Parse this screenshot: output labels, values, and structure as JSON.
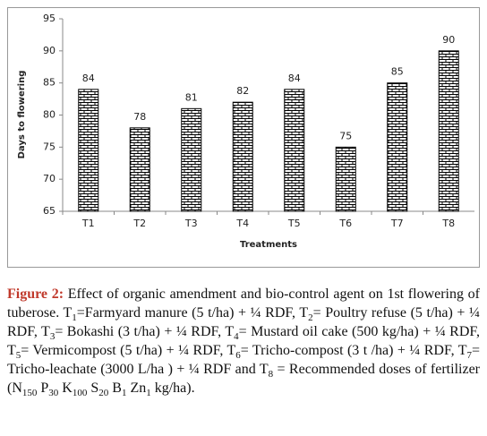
{
  "chart_data": {
    "type": "bar",
    "categories": [
      "T1",
      "T2",
      "T3",
      "T4",
      "T5",
      "T6",
      "T7",
      "T8"
    ],
    "values": [
      84,
      78,
      81,
      82,
      84,
      75,
      85,
      90
    ],
    "ylim": [
      65,
      95
    ],
    "yticks": [
      65,
      70,
      75,
      80,
      85,
      90,
      95
    ],
    "y_label": "Days to flowering",
    "x_label": "Treatments",
    "color": "#000000",
    "pattern": "brick",
    "grid": false
  },
  "caption": {
    "label": "Figure 2:",
    "runs": [
      {
        "text": " Effect of organic amendment and bio-control agent on 1st flowering of tuberose. T"
      },
      {
        "sub": "1"
      },
      {
        "text": "=Farmyard manure (5 t/ha) + ¼ RDF, T"
      },
      {
        "sub": "2"
      },
      {
        "text": "= Poultry refuse (5 t/ha) + ¼ RDF, T"
      },
      {
        "sub": "3"
      },
      {
        "text": "= Bokashi (3 t/ha) + ¼ RDF, T"
      },
      {
        "sub": "4"
      },
      {
        "text": "= Mustard oil cake (500 kg/ha) + ¼ RDF, T"
      },
      {
        "sub": "5"
      },
      {
        "text": "= Vermicompost (5 t/ha) + ¼ RDF, T"
      },
      {
        "sub": "6"
      },
      {
        "text": "= Tricho-compost (3 t /ha) + ¼ RDF, T"
      },
      {
        "sub": "7"
      },
      {
        "text": "= Tricho-leachate (3000 L/ha ) + ¼ RDF and T"
      },
      {
        "sub": "8"
      },
      {
        "text": " = Recommended doses of fertilizer (N"
      },
      {
        "sub": "150"
      },
      {
        "text": " P"
      },
      {
        "sub": "30"
      },
      {
        "text": " K"
      },
      {
        "sub": "100"
      },
      {
        "text": " S"
      },
      {
        "sub": "20"
      },
      {
        "text": " B"
      },
      {
        "sub": "1"
      },
      {
        "text": " Zn"
      },
      {
        "sub": "1"
      },
      {
        "text": " kg/ha)."
      }
    ]
  }
}
